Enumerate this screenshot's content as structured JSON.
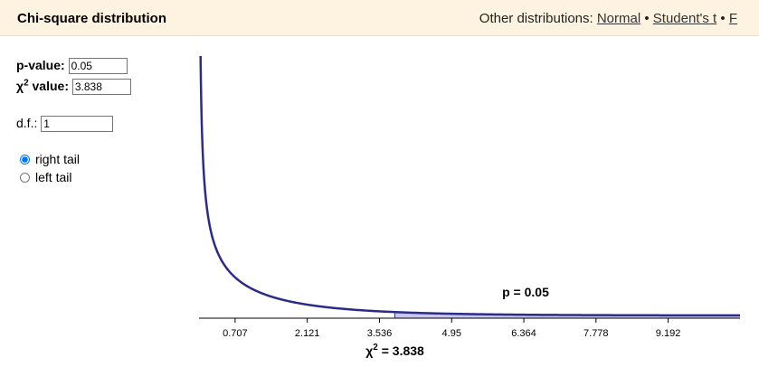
{
  "header": {
    "title": "Chi-square distribution",
    "nav_prefix": "Other distributions:",
    "links": [
      "Normal",
      "Student's t",
      "F"
    ],
    "separator": "•"
  },
  "form": {
    "p_label": "p-value:",
    "p_value": "0.05",
    "chi_label_main": "χ",
    "chi_label_sup": "2",
    "chi_label_suffix": "value:",
    "chi_value": "3.838",
    "df_label": "d.f.:",
    "df_value": "1",
    "tails": [
      {
        "label": "right tail",
        "checked": true
      },
      {
        "label": "left tail",
        "checked": false
      }
    ]
  },
  "chart_data": {
    "type": "area",
    "distribution": "chi-square",
    "df": 1,
    "x_ticks": [
      "0.707",
      "2.121",
      "3.536",
      "4.95",
      "6.364",
      "7.778",
      "9.192"
    ],
    "xlim": [
      0,
      10.6
    ],
    "critical_value": 3.838,
    "shaded_tail": "right",
    "p_annotation": "p = 0.05",
    "crit_annotation_main": "χ",
    "crit_annotation_sup": "2",
    "crit_annotation_suffix": " = 3.838",
    "curve_color": "#2b2b8a",
    "shade_color": "#c8c8ee"
  }
}
